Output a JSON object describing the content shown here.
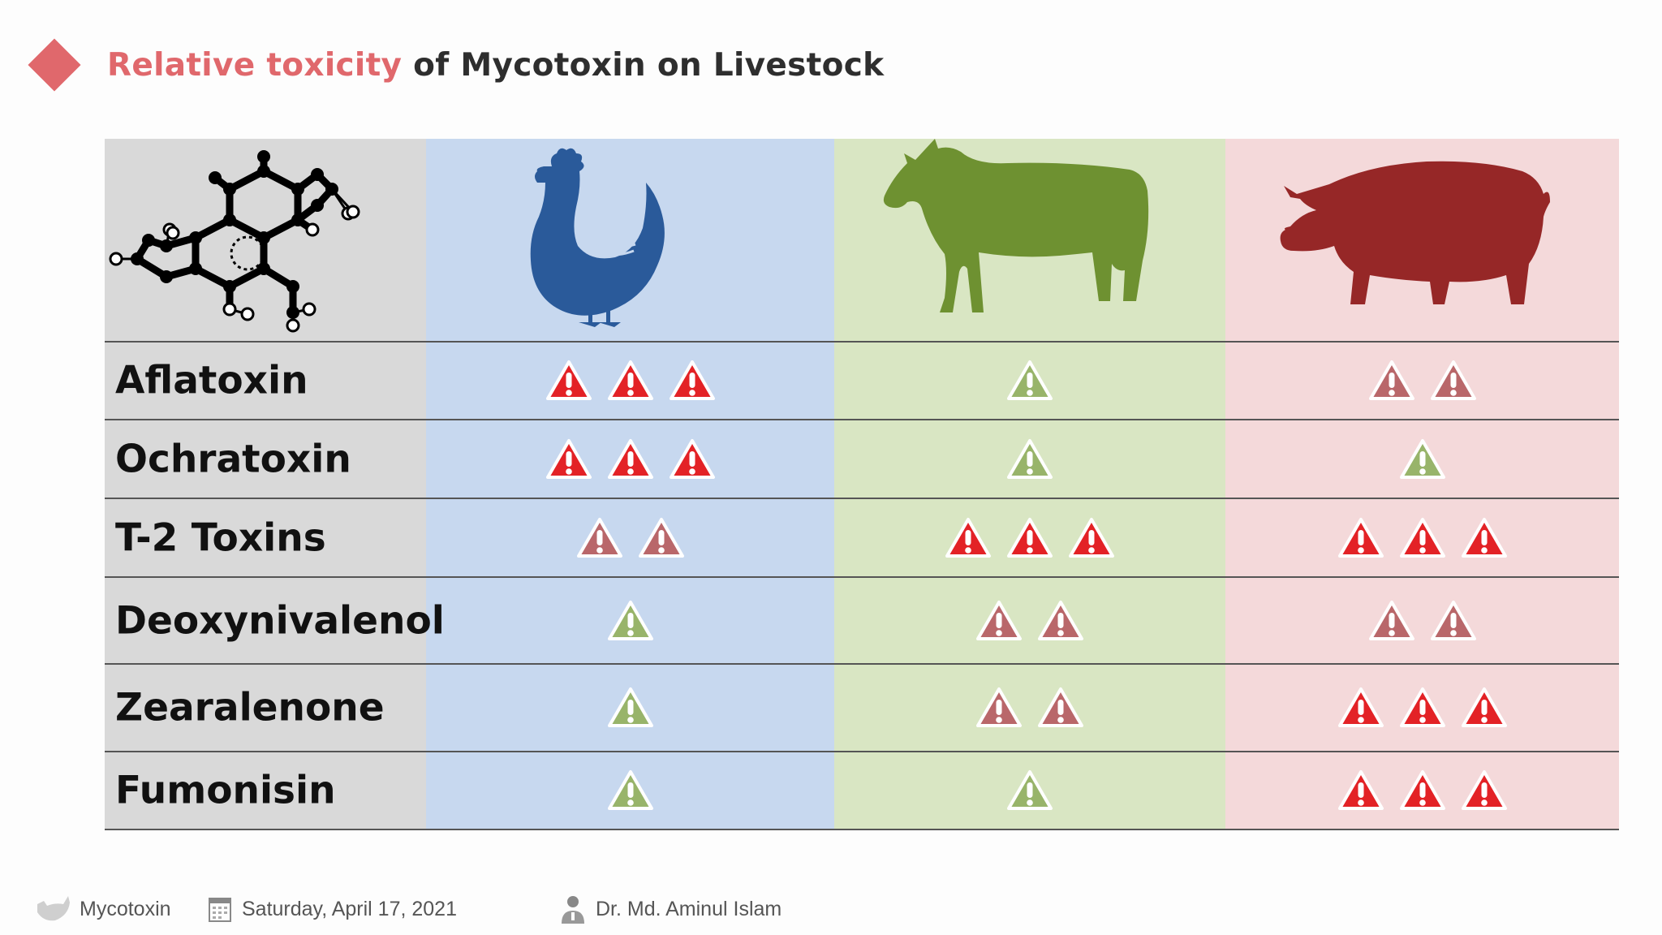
{
  "slide": {
    "title_accent": "Relative toxicity",
    "title_rest": "of Mycotoxin on Livestock"
  },
  "colors": {
    "accent": "#e0686c",
    "high": "#e32226",
    "medium": "#b9676a",
    "low": "#98b46a",
    "poultry": "#2a5a9a",
    "cattle": "#6e9131",
    "swine": "#962727"
  },
  "columns": [
    {
      "icon": "molecule-icon"
    },
    {
      "icon": "chicken-icon"
    },
    {
      "icon": "cow-icon"
    },
    {
      "icon": "pig-icon"
    }
  ],
  "rows": [
    {
      "name": "Aflatoxin",
      "levels": [
        3,
        1,
        2
      ]
    },
    {
      "name": "Ochratoxin",
      "levels": [
        3,
        1,
        1
      ]
    },
    {
      "name": "T-2 Toxins",
      "levels": [
        2,
        3,
        3
      ]
    },
    {
      "name": "Deoxynivalenol",
      "levels": [
        1,
        2,
        2
      ]
    },
    {
      "name": "Zearalenone",
      "levels": [
        1,
        2,
        3
      ]
    },
    {
      "name": "Fumonisin",
      "levels": [
        1,
        1,
        3
      ]
    }
  ],
  "footer": {
    "topic": "Mycotoxin",
    "date": "Saturday, April 17, 2021",
    "author": "Dr. Md. Aminul Islam"
  }
}
